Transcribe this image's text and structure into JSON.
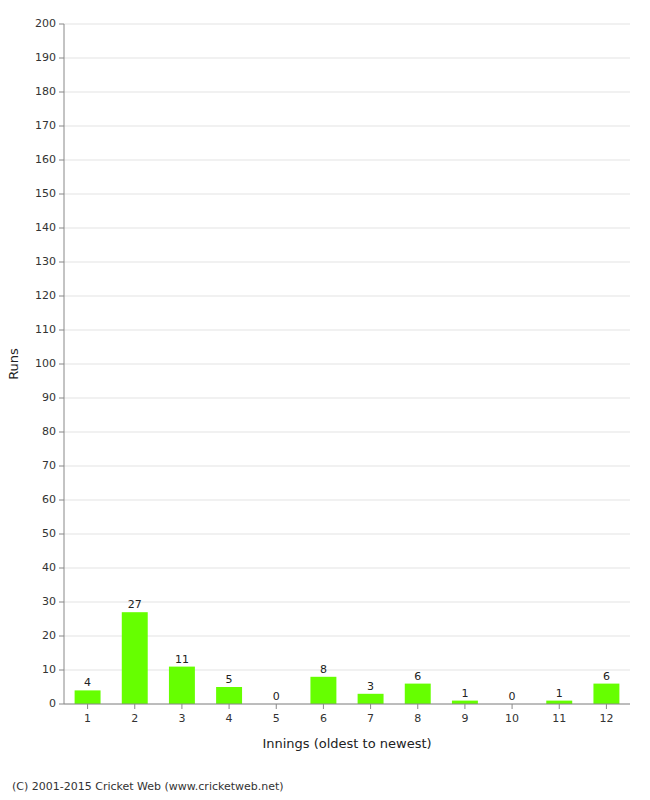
{
  "chart_data": {
    "type": "bar",
    "categories": [
      "1",
      "2",
      "3",
      "4",
      "5",
      "6",
      "7",
      "8",
      "9",
      "10",
      "11",
      "12"
    ],
    "values": [
      4,
      27,
      11,
      5,
      0,
      8,
      3,
      6,
      1,
      0,
      1,
      6
    ],
    "color": "#66ff00",
    "x_label": "Innings (oldest to newest)",
    "y_label": "Runs",
    "ylim": [
      0,
      200
    ],
    "yticks": [
      0,
      10,
      20,
      30,
      40,
      50,
      60,
      70,
      80,
      90,
      100,
      110,
      120,
      130,
      140,
      150,
      160,
      170,
      180,
      190,
      200
    ],
    "grid": true,
    "data_labels": true,
    "annotations": [
      "(C) 2001-2015 Cricket Web (www.cricketweb.net)"
    ]
  }
}
